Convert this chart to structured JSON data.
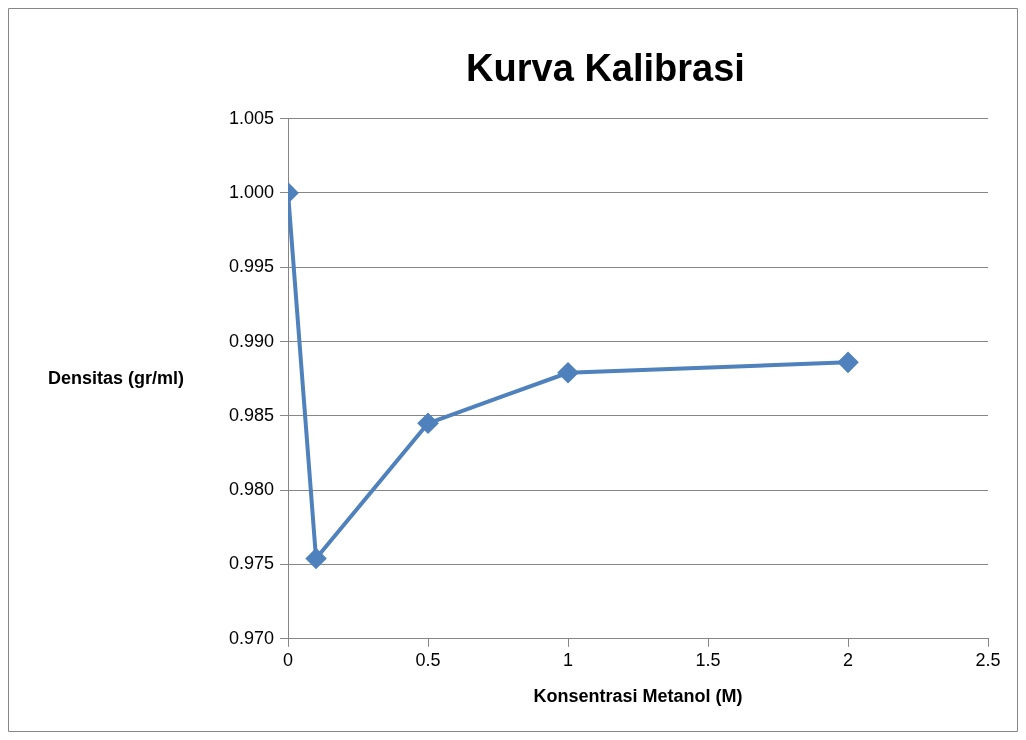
{
  "chart_data": {
    "type": "line",
    "title": "Kurva Kalibrasi",
    "xlabel": "Konsentrasi Metanol (M)",
    "ylabel": "Densitas (gr/ml)",
    "x": [
      0,
      0.1,
      0.5,
      1,
      2
    ],
    "series": [
      {
        "color": "#4f81bd",
        "values": [
          1.0,
          0.9754,
          0.9845,
          0.9879,
          0.9886
        ]
      }
    ],
    "xlim": [
      0,
      2.5
    ],
    "xticks": [
      0,
      0.5,
      1,
      1.5,
      2,
      2.5
    ],
    "ylim": [
      0.97,
      1.005
    ],
    "yticks": [
      {
        "value": 0.97,
        "label": "0.970"
      },
      {
        "value": 0.975,
        "label": "0.975"
      },
      {
        "value": 0.98,
        "label": "0.980"
      },
      {
        "value": 0.985,
        "label": "0.985"
      },
      {
        "value": 0.99,
        "label": "0.990"
      },
      {
        "value": 0.995,
        "label": "0.995"
      },
      {
        "value": 1.0,
        "label": "1.000"
      },
      {
        "value": 1.005,
        "label": "1.005"
      }
    ],
    "grid": "y",
    "marker": "diamond",
    "line_style": "solid",
    "legend": false
  }
}
